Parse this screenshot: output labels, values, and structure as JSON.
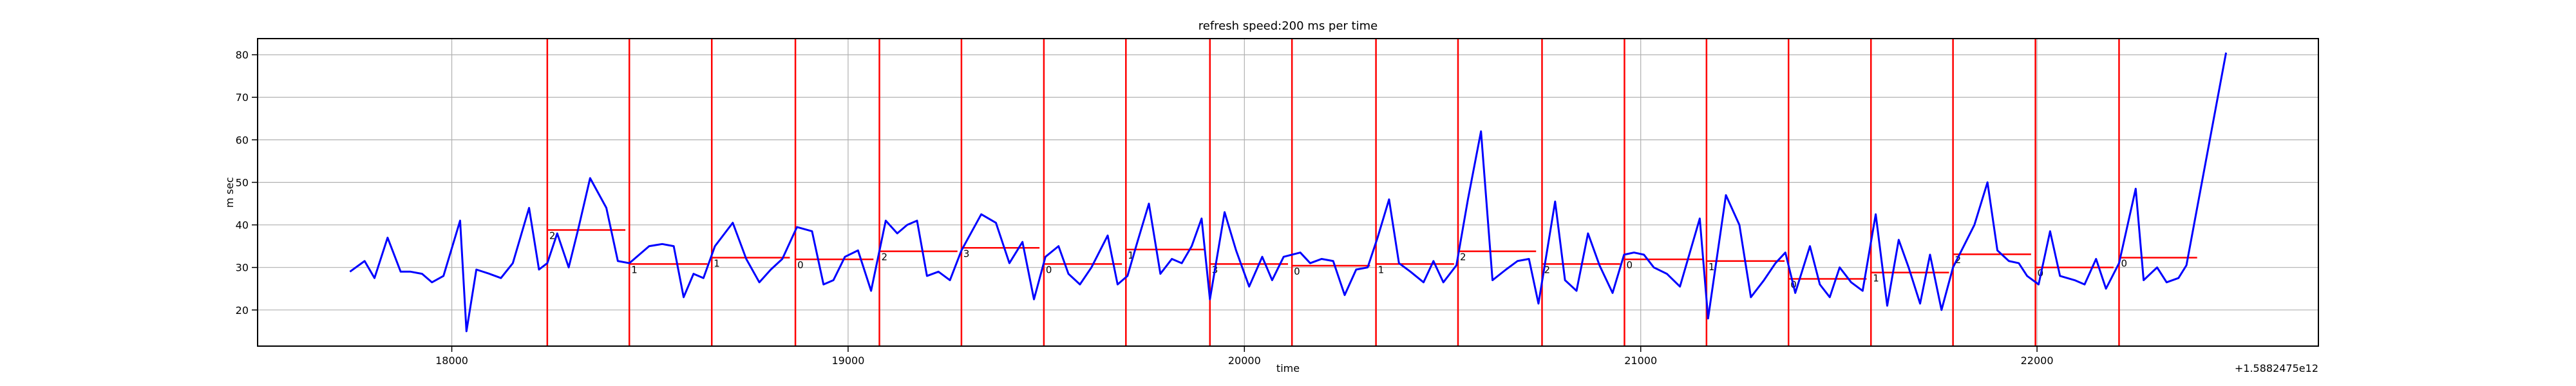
{
  "chart_data": {
    "type": "line",
    "title": "refresh speed:200 ms per time",
    "x_label": "time",
    "y_label": "m sec",
    "x_offset_label": "+1.5882475e12",
    "xlim": [
      17510,
      22710
    ],
    "ylim": [
      11.5,
      83.8
    ],
    "xticks": [
      18000,
      19000,
      20000,
      21000,
      22000
    ],
    "yticks": [
      20,
      30,
      40,
      50,
      60,
      70,
      80
    ],
    "grid": true,
    "series": [
      {
        "color": "#0000ff",
        "x": [
          17743,
          17780,
          17805,
          17838,
          17871,
          17896,
          17925,
          17950,
          17979,
          18021,
          18037,
          18062,
          18095,
          18124,
          18154,
          18195,
          18220,
          18241,
          18266,
          18295,
          18319,
          18349,
          18390,
          18419,
          18448,
          18473,
          18498,
          18531,
          18560,
          18585,
          18610,
          18635,
          18664,
          18709,
          18743,
          18776,
          18805,
          18834,
          18871,
          18909,
          18938,
          18963,
          18992,
          19025,
          19058,
          19095,
          19124,
          19149,
          19174,
          19199,
          19228,
          19257,
          19286,
          19336,
          19373,
          19407,
          19440,
          19469,
          19498,
          19531,
          19556,
          19585,
          19614,
          19655,
          19680,
          19705,
          19730,
          19759,
          19788,
          19817,
          19842,
          19867,
          19892,
          19913,
          19950,
          19979,
          20012,
          20045,
          20070,
          20099,
          20141,
          20166,
          20195,
          20224,
          20253,
          20282,
          20311,
          20336,
          20365,
          20390,
          20419,
          20452,
          20477,
          20502,
          20535,
          20564,
          20597,
          20626,
          20660,
          20689,
          20718,
          20742,
          20784,
          20809,
          20838,
          20867,
          20896,
          20929,
          20958,
          20983,
          21008,
          21033,
          21066,
          21099,
          21149,
          21170,
          21215,
          21249,
          21278,
          21311,
          21340,
          21365,
          21390,
          21427,
          21452,
          21477,
          21502,
          21531,
          21560,
          21593,
          21622,
          21651,
          21676,
          21705,
          21730,
          21759,
          21788,
          21842,
          21875,
          21900,
          21929,
          21954,
          21975,
          22004,
          22033,
          22058,
          22095,
          22120,
          22149,
          22174,
          22207,
          22249,
          22269,
          22303,
          22327,
          22357,
          22377,
          22477
        ],
        "values": [
          29,
          31.5,
          27.5,
          37,
          29,
          29,
          28.5,
          26.5,
          28,
          41,
          15,
          29.5,
          28.5,
          27.5,
          31,
          44,
          29.5,
          31,
          38,
          30,
          39,
          51,
          44,
          31.5,
          31,
          33,
          35,
          35.5,
          35,
          23,
          28.5,
          27.5,
          35,
          40.5,
          32,
          26.5,
          29.5,
          32,
          39.5,
          38.5,
          26,
          27,
          32.5,
          34,
          24.5,
          41,
          38,
          40,
          41,
          28,
          29,
          27,
          34,
          42.5,
          40.5,
          31,
          36,
          22.5,
          32.5,
          35,
          28.5,
          26,
          30,
          37.5,
          26,
          28,
          36,
          45,
          28.5,
          32,
          31,
          35,
          41.5,
          22.5,
          43,
          34,
          25.5,
          32.5,
          27,
          32.5,
          33.5,
          31,
          32,
          31.5,
          23.5,
          29.5,
          30,
          37,
          46,
          31,
          29,
          26.5,
          31.5,
          26.5,
          30.5,
          46,
          62,
          27,
          29.5,
          31.5,
          32,
          21.5,
          45.5,
          27,
          24.5,
          38,
          30.5,
          24,
          33,
          33.5,
          33,
          30,
          28.5,
          25.5,
          41.5,
          18,
          47,
          40,
          23,
          27,
          31,
          33.5,
          24,
          35,
          26,
          23,
          30,
          26.5,
          24.5,
          42.5,
          21,
          36.5,
          30,
          21.5,
          33,
          20,
          30,
          40,
          50,
          34,
          31.5,
          31,
          28,
          26,
          38.5,
          28,
          27,
          26,
          32,
          25,
          31,
          48.5,
          27,
          30,
          26.5,
          27.5,
          30.5,
          80.5
        ]
      }
    ],
    "vline_color": "#ff0000",
    "vlines": [
      18241,
      18448,
      18656,
      18867,
      19079,
      19286,
      19494,
      19701,
      19913,
      20120,
      20332,
      20539,
      20751,
      20959,
      21166,
      21373,
      21581,
      21788,
      21996,
      22207
    ],
    "segments": [
      {
        "x0": 18241,
        "x1": 18438,
        "y": 38.8,
        "label": "2"
      },
      {
        "x0": 18448,
        "x1": 18645,
        "y": 30.8,
        "label": "1"
      },
      {
        "x0": 18656,
        "x1": 18853,
        "y": 32.3,
        "label": "1"
      },
      {
        "x0": 18867,
        "x1": 19064,
        "y": 31.9,
        "label": "0"
      },
      {
        "x0": 19079,
        "x1": 19276,
        "y": 33.8,
        "label": "2"
      },
      {
        "x0": 19286,
        "x1": 19483,
        "y": 34.6,
        "label": "3"
      },
      {
        "x0": 19494,
        "x1": 19691,
        "y": 30.8,
        "label": "0"
      },
      {
        "x0": 19701,
        "x1": 19898,
        "y": 34.2,
        "label": "1"
      },
      {
        "x0": 19913,
        "x1": 20110,
        "y": 30.8,
        "label": "3"
      },
      {
        "x0": 20120,
        "x1": 20317,
        "y": 30.4,
        "label": "0"
      },
      {
        "x0": 20332,
        "x1": 20529,
        "y": 30.8,
        "label": "1"
      },
      {
        "x0": 20539,
        "x1": 20736,
        "y": 33.8,
        "label": "2"
      },
      {
        "x0": 20751,
        "x1": 20948,
        "y": 30.8,
        "label": "2"
      },
      {
        "x0": 20959,
        "x1": 21156,
        "y": 31.9,
        "label": "0"
      },
      {
        "x0": 21166,
        "x1": 21363,
        "y": 31.5,
        "label": "1"
      },
      {
        "x0": 21373,
        "x1": 21570,
        "y": 27.3,
        "label": "0"
      },
      {
        "x0": 21581,
        "x1": 21778,
        "y": 28.8,
        "label": "1"
      },
      {
        "x0": 21788,
        "x1": 21985,
        "y": 33.1,
        "label": "2"
      },
      {
        "x0": 21996,
        "x1": 22193,
        "y": 30,
        "label": "0"
      },
      {
        "x0": 22207,
        "x1": 22404,
        "y": 32.3,
        "label": "0"
      }
    ]
  }
}
